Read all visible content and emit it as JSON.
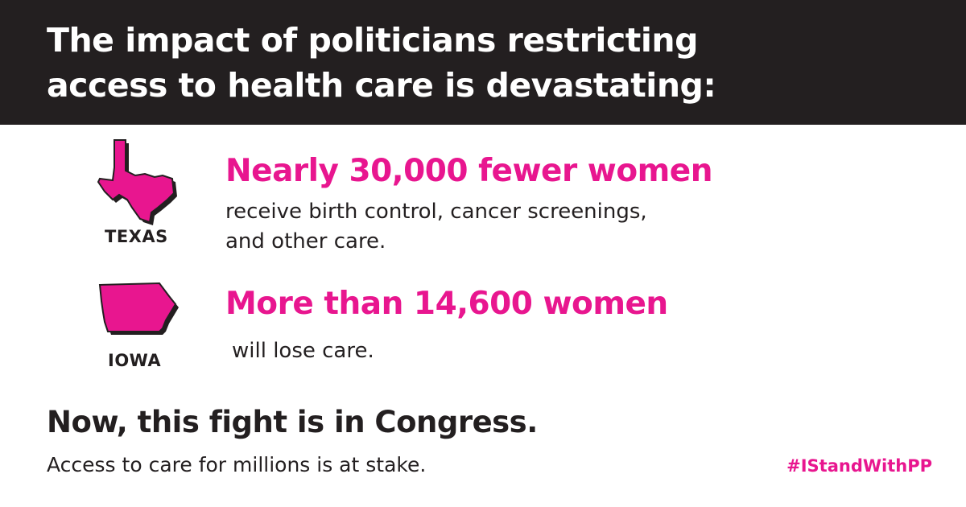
{
  "header": {
    "title_line1": "The impact of politicians restricting",
    "title_line2": "access to health care is devastating:"
  },
  "states": [
    {
      "label": "TEXAS",
      "icon": "texas-map-icon",
      "headline": "Nearly 30,000 fewer women",
      "description_line1": "receive birth control, cancer screenings,",
      "description_line2": "and other care."
    },
    {
      "label": "IOWA",
      "icon": "iowa-map-icon",
      "headline": "More than 14,600 women",
      "description_line1": "will lose care."
    }
  ],
  "footer": {
    "headline": "Now, this fight is in Congress.",
    "subtext": "Access to care for millions is at stake.",
    "hashtag": "#IStandWithPP"
  },
  "colors": {
    "accent": "#e8168f",
    "dark": "#231f20",
    "background": "#ffffff"
  }
}
